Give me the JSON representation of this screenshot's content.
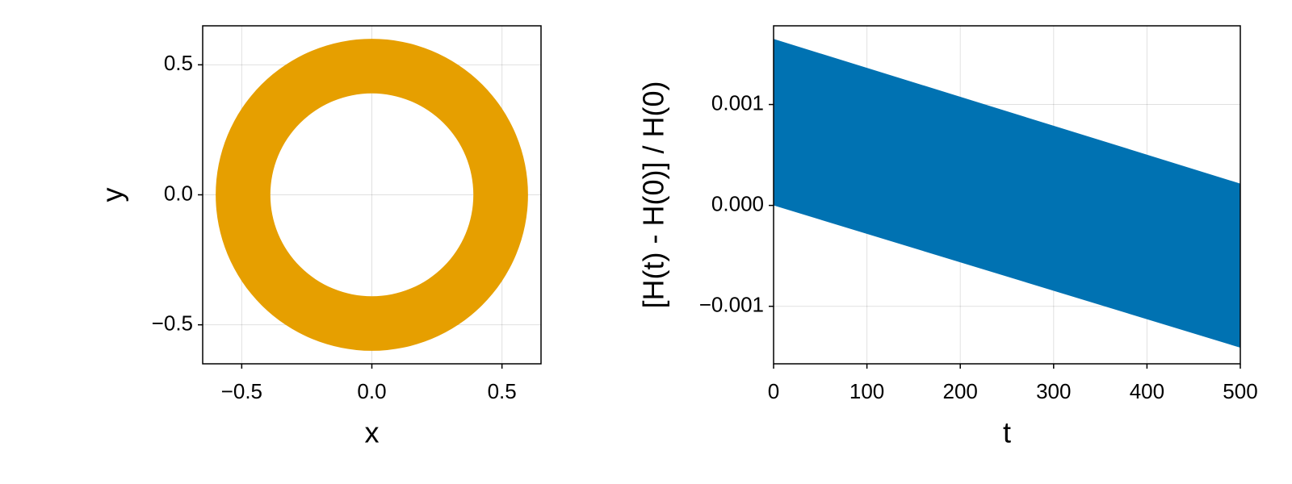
{
  "chart_data": [
    {
      "type": "annulus",
      "radii": [
        0.39,
        0.6
      ],
      "color": "#e69f00",
      "xlabel": "x",
      "ylabel": "y",
      "xlim": [
        -0.65,
        0.65
      ],
      "ylim": [
        -0.65,
        0.65
      ],
      "xticks": [
        {
          "value": -0.5,
          "label": "−0.5"
        },
        {
          "value": 0,
          "label": "0.0"
        },
        0.5
      ],
      "yticks": [
        {
          "value": -0.5,
          "label": "−0.5"
        },
        {
          "value": 0,
          "label": "0.0"
        },
        0.5
      ],
      "grid": true
    },
    {
      "type": "band",
      "x": [
        0,
        500
      ],
      "upper": [
        0.00165,
        0.000216
      ],
      "lower": [
        0,
        -0.00141
      ],
      "color": "#0072b2",
      "xlabel": "t",
      "ylabel": "[H(t) - H(0)] / H(0)",
      "xlim": [
        0,
        500
      ],
      "ylim": [
        -0.00157,
        0.00178
      ],
      "xticks": [
        0,
        100,
        200,
        300,
        400,
        500
      ],
      "yticks": [
        {
          "value": -0.001,
          "label": "−0.001"
        },
        {
          "value": 0,
          "label": "0.000"
        },
        {
          "value": 0.001,
          "label": "0.001"
        }
      ],
      "grid": true
    }
  ]
}
